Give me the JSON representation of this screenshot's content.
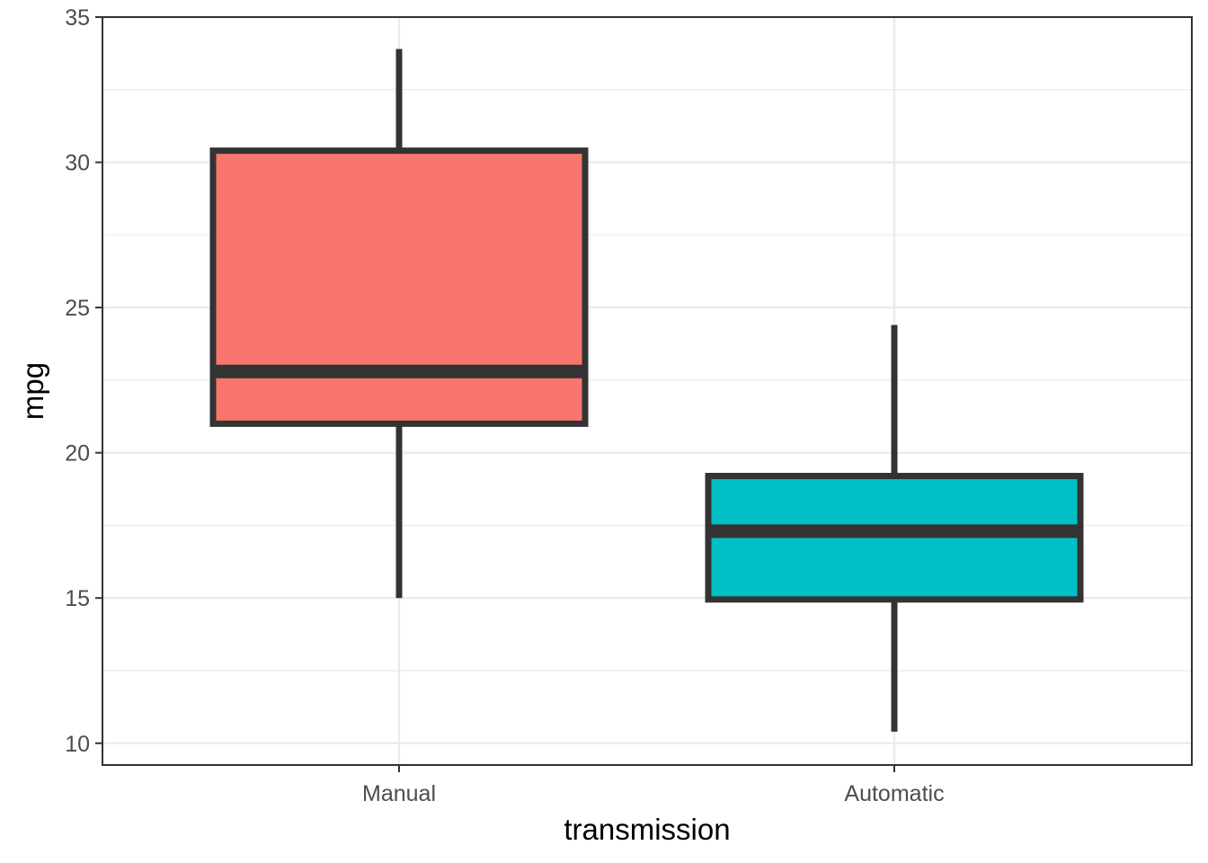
{
  "chart_data": {
    "type": "boxplot",
    "title": "",
    "xlabel": "transmission",
    "ylabel": "mpg",
    "ylim": [
      9.25,
      35.0
    ],
    "yticks": [
      10,
      15,
      20,
      25,
      30,
      35
    ],
    "grid": true,
    "categories": [
      "Manual",
      "Automatic"
    ],
    "boxes": [
      {
        "category": "Manual",
        "min": 15.0,
        "q1": 21.0,
        "median": 22.8,
        "q3": 30.4,
        "max": 33.9,
        "color": "#F8766D"
      },
      {
        "category": "Automatic",
        "min": 10.4,
        "q1": 14.95,
        "median": 17.3,
        "q3": 19.2,
        "max": 24.4,
        "color": "#00BFC4"
      }
    ]
  }
}
